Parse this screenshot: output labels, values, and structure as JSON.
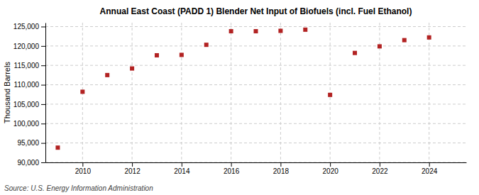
{
  "chart_data": {
    "type": "scatter",
    "title": "Annual East Coast (PADD 1) Blender Net Input of Biofuels (incl. Fuel Ethanol)",
    "ylabel": "Thousand Barrels",
    "source": "Source: U.S. Energy Information Administration",
    "x": [
      2009,
      2010,
      2011,
      2012,
      2013,
      2014,
      2015,
      2016,
      2017,
      2018,
      2019,
      2020,
      2021,
      2022,
      2023,
      2024
    ],
    "values": [
      93800,
      108200,
      112500,
      114200,
      117600,
      117700,
      120300,
      123800,
      123800,
      123900,
      124200,
      107400,
      118200,
      119900,
      121500,
      122200
    ],
    "color": "#b22222",
    "marker": "square",
    "xlim": [
      2008.5,
      2025.5
    ],
    "xticks": [
      2010,
      2012,
      2014,
      2016,
      2018,
      2020,
      2022,
      2024
    ],
    "ylim": [
      90000,
      126000
    ],
    "yticks": [
      {
        "value": 90000,
        "label": "90,000"
      },
      {
        "value": 95000,
        "label": "95,000"
      },
      {
        "value": 100000,
        "label": "100,000"
      },
      {
        "value": 105000,
        "label": "105,000"
      },
      {
        "value": 110000,
        "label": "110,000"
      },
      {
        "value": 115000,
        "label": "115,000"
      },
      {
        "value": 120000,
        "label": "120,000"
      },
      {
        "value": 125000,
        "label": "125,000"
      }
    ],
    "grid": true
  }
}
